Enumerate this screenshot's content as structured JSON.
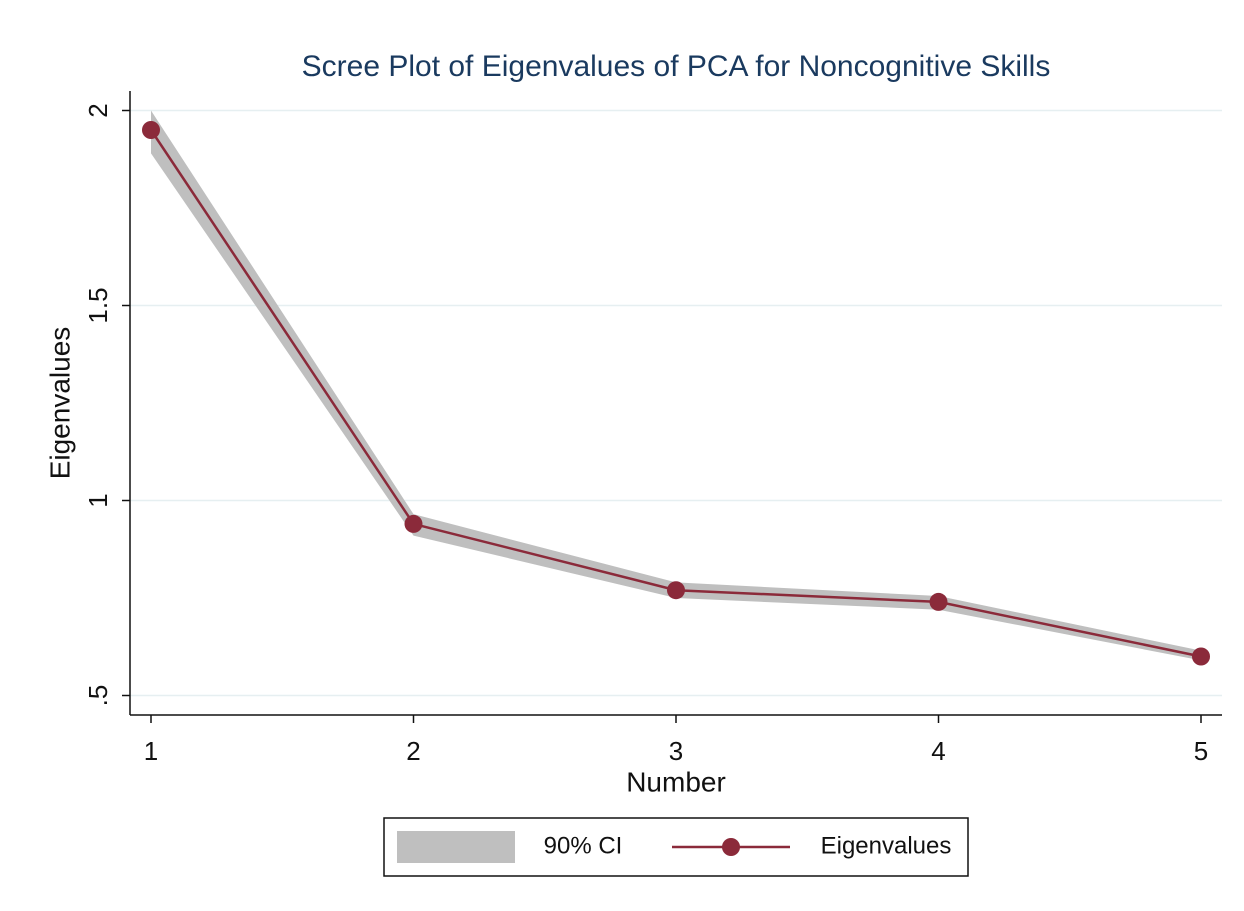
{
  "chart_data": {
    "type": "line",
    "title": "Scree Plot of Eigenvalues of PCA for Noncognitive Skills",
    "x_label": "Number",
    "y_label": "Eigenvalues",
    "x": [
      1,
      2,
      3,
      4,
      5
    ],
    "series": [
      {
        "name": "90% CI",
        "type": "band",
        "color": "#bfbfbf",
        "lower": [
          1.89,
          0.91,
          0.75,
          0.72,
          0.59
        ],
        "upper": [
          2.0,
          0.965,
          0.79,
          0.755,
          0.615
        ]
      },
      {
        "name": "Eigenvalues",
        "type": "line",
        "color": "#8b2a3a",
        "values": [
          1.95,
          0.94,
          0.77,
          0.74,
          0.6
        ]
      }
    ],
    "xlim": [
      0.92,
      5.08
    ],
    "xticks": [
      1,
      2,
      3,
      4,
      5
    ],
    "ylim": [
      0.45,
      2.05
    ],
    "yticks": [
      2,
      1.5,
      1,
      {
        "value": 0.5,
        "label": ".5"
      }
    ],
    "grid": true,
    "legend": "bottom"
  }
}
